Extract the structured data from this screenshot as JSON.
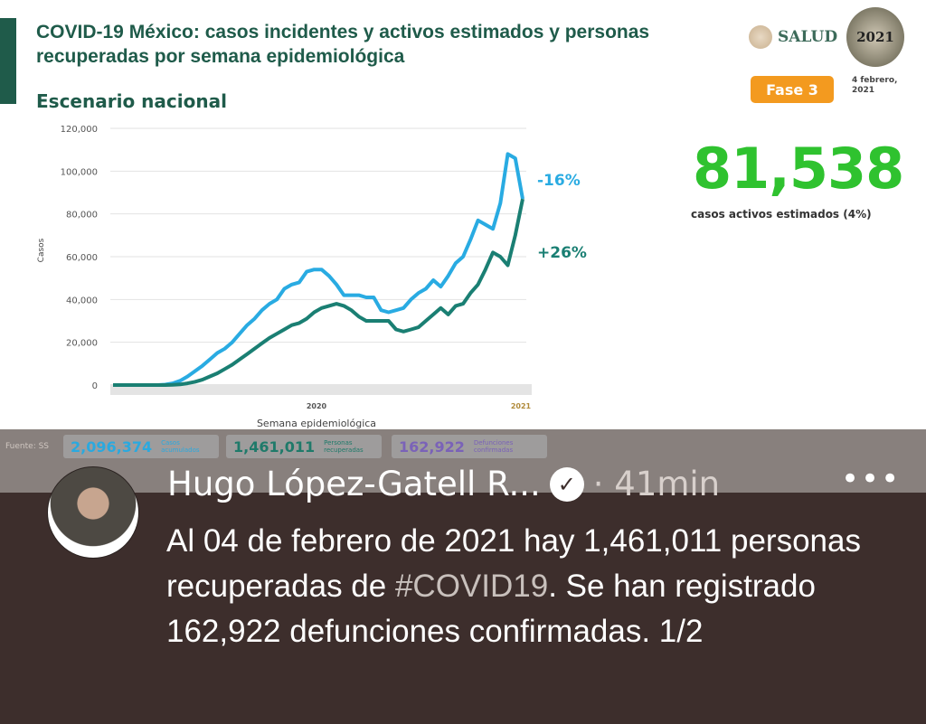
{
  "slide": {
    "title": "COVID-19 México: casos incidentes y activos estimados y personas recuperadas por semana epidemiológica",
    "subtitle": "Escenario nacional",
    "logo_text": "SALUD",
    "logo2021_text": "2021",
    "phase": "Fase 3",
    "date": "4 febrero, 2021",
    "active_cases": "81,538",
    "active_cases_label": "casos activos estimados (4%)",
    "source": "Fuente: SS",
    "stats": [
      {
        "value": "2,096,374",
        "label": "Casos acumulados",
        "color": "#2aa9df"
      },
      {
        "value": "1,461,011",
        "label": "Personas recuperadas",
        "color": "#1f7a6a"
      },
      {
        "value": "162,922",
        "label": "Defunciones confirmadas",
        "color": "#7a62b8"
      }
    ]
  },
  "chart_data": {
    "type": "line",
    "title": "",
    "xlabel": "Semana epidemiológica",
    "ylabel": "Casos",
    "ylim": [
      0,
      120000
    ],
    "yticks": [
      "0",
      "20,000",
      "40,000",
      "60,000",
      "80,000",
      "100,000",
      "120,000"
    ],
    "ytick_values": [
      0,
      20000,
      40000,
      60000,
      80000,
      100000,
      120000
    ],
    "year_labels": [
      "2020",
      "2021"
    ],
    "grid": true,
    "series": [
      {
        "color": "#29abe2",
        "end_label": "-16%",
        "values": [
          0,
          0,
          0,
          0,
          0,
          0,
          0,
          200,
          800,
          2000,
          4000,
          6500,
          9000,
          12000,
          15000,
          17000,
          20000,
          24000,
          28000,
          31000,
          35000,
          38000,
          40000,
          45000,
          47000,
          48000,
          53000,
          54000,
          54000,
          51000,
          47000,
          42000,
          42000,
          42000,
          41000,
          41000,
          35000,
          34000,
          35000,
          36000,
          40000,
          43000,
          45000,
          49000,
          46000,
          51000,
          57000,
          60000,
          68000,
          77000,
          75000,
          73000,
          85000,
          108000,
          106000,
          87000
        ]
      },
      {
        "color": "#1a7f73",
        "end_label": "+26%",
        "values": [
          0,
          0,
          0,
          0,
          0,
          0,
          0,
          0,
          100,
          300,
          800,
          1500,
          2500,
          4000,
          5500,
          7500,
          9500,
          12000,
          14500,
          17000,
          19500,
          22000,
          24000,
          26000,
          28000,
          29000,
          31000,
          34000,
          36000,
          37000,
          38000,
          37000,
          35000,
          32000,
          30000,
          30000,
          30000,
          30000,
          26000,
          25000,
          26000,
          27000,
          30000,
          33000,
          36000,
          33000,
          37000,
          38000,
          43000,
          47000,
          54000,
          62000,
          60000,
          56000,
          70000,
          87000
        ]
      }
    ]
  },
  "tweet": {
    "author": "Hugo López-Gatell R...",
    "time": "· 41min",
    "more": "•••",
    "text_before": "Al 04 de febrero de 2021 hay 1,461,011 personas recuperadas de ",
    "hashtag": "#COVID19",
    "text_after": ". Se han registrado 162,922 defunciones confirmadas. 1/2"
  }
}
